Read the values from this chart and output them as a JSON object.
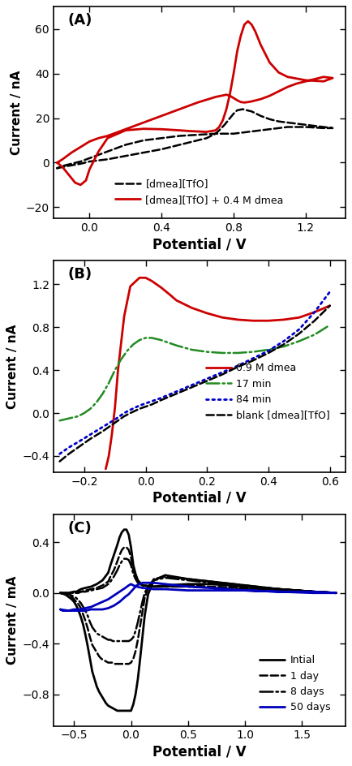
{
  "figsize": [
    4.34,
    9.44
  ],
  "dpi": 100,
  "background_color": "#ffffff",
  "panel_A": {
    "label": "(A)",
    "xlabel": "Potential / V",
    "ylabel": "Current / nA",
    "xlim": [
      -0.2,
      1.42
    ],
    "ylim": [
      -25,
      70
    ],
    "xticks": [
      0.0,
      0.4,
      0.8,
      1.2
    ],
    "yticks": [
      -20,
      0,
      20,
      40,
      60
    ],
    "lines": [
      {
        "label": "[dmea][TfO]",
        "color": "#000000",
        "linestyle": "dashed",
        "linewidth": 1.8,
        "x": [
          -0.18,
          -0.12,
          -0.05,
          0.0,
          0.1,
          0.2,
          0.3,
          0.4,
          0.5,
          0.6,
          0.65,
          0.7,
          0.72,
          0.75,
          0.78,
          0.8,
          0.82,
          0.85,
          0.9,
          0.95,
          1.0,
          1.05,
          1.1,
          1.2,
          1.3,
          1.35,
          1.3,
          1.2,
          1.1,
          1.0,
          0.9,
          0.8,
          0.7,
          0.6,
          0.5,
          0.4,
          0.3,
          0.2,
          0.1,
          0.0,
          -0.05,
          -0.1,
          -0.15,
          -0.18
        ],
        "y": [
          -2.5,
          -1.5,
          -0.5,
          0.5,
          1.5,
          3.0,
          4.5,
          6.0,
          8.0,
          10.0,
          11.0,
          13.0,
          14.5,
          17.0,
          20.0,
          22.0,
          23.5,
          24.0,
          23.0,
          21.0,
          19.5,
          18.5,
          18.0,
          17.0,
          16.0,
          15.5,
          15.5,
          16.0,
          16.0,
          15.0,
          14.0,
          13.0,
          13.0,
          12.5,
          12.0,
          11.0,
          10.0,
          8.0,
          5.0,
          2.0,
          0.5,
          -0.5,
          -1.5,
          -2.5
        ]
      },
      {
        "label": "[dmea][TfO] + 0.4 M dmea",
        "color": "#cc0000",
        "linestyle": "solid",
        "linewidth": 2.0,
        "x": [
          -0.18,
          -0.15,
          -0.12,
          -0.1,
          -0.08,
          -0.05,
          -0.02,
          0.0,
          0.05,
          0.1,
          0.2,
          0.3,
          0.4,
          0.5,
          0.55,
          0.6,
          0.65,
          0.7,
          0.72,
          0.74,
          0.76,
          0.78,
          0.8,
          0.82,
          0.84,
          0.86,
          0.88,
          0.9,
          0.92,
          0.95,
          1.0,
          1.05,
          1.1,
          1.2,
          1.3,
          1.35,
          1.3,
          1.25,
          1.2,
          1.15,
          1.1,
          1.05,
          1.0,
          0.95,
          0.9,
          0.88,
          0.86,
          0.84,
          0.82,
          0.8,
          0.78,
          0.76,
          0.7,
          0.6,
          0.5,
          0.4,
          0.3,
          0.2,
          0.15,
          0.1,
          0.05,
          0.0,
          -0.05,
          -0.1,
          -0.15,
          -0.18
        ],
        "y": [
          0.0,
          -2.0,
          -5.0,
          -7.0,
          -9.0,
          -10.0,
          -8.0,
          -3.0,
          5.0,
          11.0,
          14.5,
          15.2,
          15.0,
          14.5,
          14.2,
          14.0,
          13.8,
          14.5,
          16.0,
          19.0,
          24.0,
          31.0,
          40.0,
          50.0,
          57.0,
          62.0,
          63.5,
          62.0,
          59.0,
          53.0,
          45.0,
          40.5,
          38.5,
          37.0,
          36.5,
          38.0,
          38.5,
          37.5,
          36.5,
          35.5,
          34.0,
          32.0,
          30.0,
          28.5,
          27.5,
          27.2,
          27.0,
          27.2,
          28.0,
          29.0,
          30.0,
          30.5,
          29.5,
          27.0,
          24.0,
          21.0,
          18.0,
          15.0,
          13.5,
          12.0,
          11.0,
          9.5,
          7.0,
          4.5,
          1.5,
          0.0
        ]
      }
    ]
  },
  "panel_B": {
    "label": "(B)",
    "xlabel": "Potential / V",
    "ylabel": "Current / nA",
    "xlim": [
      -0.3,
      0.65
    ],
    "ylim": [
      -0.55,
      1.42
    ],
    "xticks": [
      -0.2,
      0.0,
      0.2,
      0.4,
      0.6
    ],
    "yticks": [
      -0.4,
      0.0,
      0.4,
      0.8,
      1.2
    ],
    "lines": [
      {
        "label": "0.9 M dmea",
        "color": "#cc0000",
        "linestyle": "solid",
        "linewidth": 2.0,
        "x": [
          -0.13,
          -0.12,
          -0.11,
          -0.1,
          -0.09,
          -0.07,
          -0.05,
          -0.02,
          0.0,
          0.02,
          0.05,
          0.08,
          0.1,
          0.15,
          0.2,
          0.25,
          0.3,
          0.35,
          0.4,
          0.45,
          0.5,
          0.55,
          0.6
        ],
        "y": [
          -0.52,
          -0.4,
          -0.2,
          0.05,
          0.4,
          0.9,
          1.18,
          1.26,
          1.26,
          1.23,
          1.17,
          1.1,
          1.05,
          0.98,
          0.93,
          0.89,
          0.87,
          0.86,
          0.86,
          0.87,
          0.89,
          0.94,
          1.0
        ]
      },
      {
        "label": "17 min",
        "color": "#228B22",
        "linestyle": "dashdot",
        "linewidth": 1.8,
        "x": [
          -0.28,
          -0.25,
          -0.22,
          -0.2,
          -0.18,
          -0.16,
          -0.14,
          -0.12,
          -0.1,
          -0.08,
          -0.06,
          -0.04,
          -0.02,
          0.0,
          0.02,
          0.05,
          0.1,
          0.15,
          0.2,
          0.25,
          0.3,
          0.35,
          0.4,
          0.45,
          0.5,
          0.55,
          0.6
        ],
        "y": [
          -0.07,
          -0.05,
          -0.03,
          0.0,
          0.04,
          0.1,
          0.18,
          0.28,
          0.4,
          0.5,
          0.58,
          0.64,
          0.68,
          0.7,
          0.7,
          0.68,
          0.63,
          0.59,
          0.57,
          0.56,
          0.56,
          0.57,
          0.59,
          0.62,
          0.67,
          0.73,
          0.82
        ]
      },
      {
        "label": "84 min",
        "color": "#0000cc",
        "linestyle": "dotted",
        "linewidth": 2.0,
        "x": [
          -0.28,
          -0.25,
          -0.22,
          -0.18,
          -0.14,
          -0.1,
          -0.07,
          -0.05,
          -0.02,
          0.0,
          0.02,
          0.05,
          0.1,
          0.15,
          0.2,
          0.25,
          0.3,
          0.35,
          0.4,
          0.45,
          0.5,
          0.55,
          0.6
        ],
        "y": [
          -0.38,
          -0.32,
          -0.27,
          -0.2,
          -0.13,
          -0.06,
          0.0,
          0.03,
          0.07,
          0.09,
          0.11,
          0.14,
          0.2,
          0.26,
          0.32,
          0.38,
          0.44,
          0.51,
          0.58,
          0.67,
          0.78,
          0.94,
          1.13
        ]
      },
      {
        "label": "blank [dmea][TfO]",
        "color": "#000000",
        "linestyle": "dashed",
        "linewidth": 1.8,
        "x": [
          -0.28,
          -0.25,
          -0.22,
          -0.18,
          -0.14,
          -0.1,
          -0.07,
          -0.05,
          -0.02,
          0.0,
          0.02,
          0.05,
          0.1,
          0.15,
          0.2,
          0.25,
          0.3,
          0.35,
          0.4,
          0.45,
          0.5,
          0.55,
          0.6
        ],
        "y": [
          -0.45,
          -0.38,
          -0.32,
          -0.24,
          -0.17,
          -0.09,
          -0.03,
          0.0,
          0.04,
          0.06,
          0.08,
          0.12,
          0.18,
          0.24,
          0.3,
          0.36,
          0.43,
          0.49,
          0.56,
          0.64,
          0.74,
          0.86,
          1.0
        ]
      }
    ]
  },
  "panel_C": {
    "label": "(C)",
    "xlabel": "Potential / V",
    "ylabel": "Current / mA",
    "xlim": [
      -0.68,
      1.88
    ],
    "ylim": [
      -1.05,
      0.62
    ],
    "xticks": [
      -0.5,
      0.0,
      0.5,
      1.0,
      1.5
    ],
    "yticks": [
      -0.8,
      -0.4,
      0.0,
      0.4
    ],
    "lines": [
      {
        "label": "Intial",
        "color": "#000000",
        "linestyle": "solid",
        "linewidth": 2.0,
        "x": [
          -0.62,
          -0.58,
          -0.55,
          -0.52,
          -0.5,
          -0.48,
          -0.46,
          -0.44,
          -0.42,
          -0.4,
          -0.38,
          -0.36,
          -0.34,
          -0.3,
          -0.28,
          -0.26,
          -0.24,
          -0.22,
          -0.2,
          -0.18,
          -0.16,
          -0.14,
          -0.12,
          -0.1,
          -0.08,
          -0.06,
          -0.04,
          -0.02,
          0.0,
          0.02,
          0.04,
          0.06,
          0.08,
          0.1,
          0.12,
          0.15,
          0.2,
          0.3,
          0.5,
          0.7,
          1.0,
          1.3,
          1.6,
          1.8,
          1.8,
          1.6,
          1.3,
          1.0,
          0.7,
          0.5,
          0.3,
          0.2,
          0.1,
          0.06,
          0.04,
          0.02,
          0.0,
          -0.02,
          -0.04,
          -0.06,
          -0.08,
          -0.1,
          -0.12,
          -0.15,
          -0.18,
          -0.2,
          -0.25,
          -0.3,
          -0.35,
          -0.4,
          -0.44,
          -0.46,
          -0.48,
          -0.5,
          -0.55,
          -0.58,
          -0.62
        ],
        "y": [
          0.0,
          -0.01,
          -0.03,
          -0.05,
          -0.07,
          -0.1,
          -0.14,
          -0.19,
          -0.25,
          -0.33,
          -0.42,
          -0.52,
          -0.62,
          -0.74,
          -0.78,
          -0.81,
          -0.84,
          -0.87,
          -0.89,
          -0.9,
          -0.91,
          -0.92,
          -0.93,
          -0.93,
          -0.93,
          -0.93,
          -0.93,
          -0.93,
          -0.93,
          -0.88,
          -0.8,
          -0.68,
          -0.52,
          -0.35,
          -0.18,
          -0.01,
          0.1,
          0.14,
          0.11,
          0.09,
          0.06,
          0.03,
          0.01,
          0.0,
          0.0,
          0.01,
          0.03,
          0.05,
          0.07,
          0.07,
          0.06,
          0.05,
          0.06,
          0.1,
          0.15,
          0.22,
          0.36,
          0.46,
          0.5,
          0.5,
          0.48,
          0.44,
          0.38,
          0.3,
          0.22,
          0.16,
          0.1,
          0.07,
          0.05,
          0.04,
          0.03,
          0.02,
          0.01,
          0.01,
          0.0,
          0.0,
          0.0
        ]
      },
      {
        "label": "1 day",
        "color": "#000000",
        "linestyle": "dashed",
        "linewidth": 1.8,
        "x": [
          -0.62,
          -0.58,
          -0.55,
          -0.52,
          -0.5,
          -0.48,
          -0.46,
          -0.44,
          -0.42,
          -0.4,
          -0.38,
          -0.36,
          -0.34,
          -0.3,
          -0.28,
          -0.26,
          -0.24,
          -0.22,
          -0.2,
          -0.18,
          -0.16,
          -0.14,
          -0.12,
          -0.1,
          -0.08,
          -0.06,
          -0.04,
          -0.02,
          0.0,
          0.02,
          0.04,
          0.06,
          0.08,
          0.1,
          0.12,
          0.15,
          0.2,
          0.3,
          0.5,
          0.7,
          1.0,
          1.3,
          1.6,
          1.8,
          1.8,
          1.6,
          1.3,
          1.0,
          0.7,
          0.5,
          0.3,
          0.2,
          0.1,
          0.06,
          0.04,
          0.02,
          0.0,
          -0.02,
          -0.04,
          -0.06,
          -0.08,
          -0.1,
          -0.12,
          -0.15,
          -0.18,
          -0.2,
          -0.25,
          -0.3,
          -0.35,
          -0.4,
          -0.44,
          -0.46,
          -0.48,
          -0.5,
          -0.55,
          -0.58,
          -0.62
        ],
        "y": [
          0.0,
          -0.01,
          -0.02,
          -0.03,
          -0.05,
          -0.07,
          -0.09,
          -0.12,
          -0.17,
          -0.22,
          -0.28,
          -0.35,
          -0.41,
          -0.47,
          -0.5,
          -0.52,
          -0.53,
          -0.54,
          -0.55,
          -0.55,
          -0.55,
          -0.56,
          -0.56,
          -0.56,
          -0.56,
          -0.56,
          -0.56,
          -0.56,
          -0.55,
          -0.52,
          -0.46,
          -0.37,
          -0.26,
          -0.15,
          -0.04,
          0.04,
          0.11,
          0.13,
          0.11,
          0.09,
          0.06,
          0.03,
          0.01,
          0.0,
          0.0,
          0.01,
          0.02,
          0.04,
          0.05,
          0.06,
          0.05,
          0.05,
          0.06,
          0.09,
          0.13,
          0.18,
          0.28,
          0.34,
          0.36,
          0.36,
          0.34,
          0.3,
          0.25,
          0.18,
          0.13,
          0.09,
          0.06,
          0.04,
          0.03,
          0.02,
          0.01,
          0.01,
          0.0,
          0.0,
          0.0,
          0.0,
          0.0
        ]
      },
      {
        "label": "8 days",
        "color": "#000000",
        "linestyle": "dashdot",
        "linewidth": 1.8,
        "x": [
          -0.62,
          -0.58,
          -0.55,
          -0.52,
          -0.5,
          -0.48,
          -0.46,
          -0.44,
          -0.42,
          -0.4,
          -0.38,
          -0.36,
          -0.34,
          -0.3,
          -0.28,
          -0.26,
          -0.24,
          -0.22,
          -0.2,
          -0.18,
          -0.16,
          -0.14,
          -0.12,
          -0.1,
          -0.08,
          -0.06,
          -0.04,
          -0.02,
          0.0,
          0.02,
          0.04,
          0.06,
          0.08,
          0.1,
          0.12,
          0.15,
          0.2,
          0.3,
          0.5,
          0.7,
          1.0,
          1.3,
          1.6,
          1.8,
          1.8,
          1.6,
          1.3,
          1.0,
          0.7,
          0.5,
          0.3,
          0.2,
          0.1,
          0.06,
          0.04,
          0.02,
          0.0,
          -0.02,
          -0.04,
          -0.06,
          -0.08,
          -0.1,
          -0.12,
          -0.15,
          -0.18,
          -0.2,
          -0.25,
          -0.3,
          -0.35,
          -0.4,
          -0.44,
          -0.46,
          -0.48,
          -0.5,
          -0.55,
          -0.58,
          -0.62
        ],
        "y": [
          0.0,
          -0.01,
          -0.01,
          -0.02,
          -0.03,
          -0.04,
          -0.06,
          -0.08,
          -0.11,
          -0.14,
          -0.18,
          -0.23,
          -0.27,
          -0.32,
          -0.33,
          -0.34,
          -0.35,
          -0.36,
          -0.37,
          -0.37,
          -0.38,
          -0.38,
          -0.38,
          -0.38,
          -0.38,
          -0.38,
          -0.38,
          -0.38,
          -0.37,
          -0.35,
          -0.3,
          -0.23,
          -0.15,
          -0.07,
          0.0,
          0.05,
          0.1,
          0.12,
          0.1,
          0.08,
          0.05,
          0.03,
          0.01,
          0.0,
          0.0,
          0.01,
          0.02,
          0.03,
          0.04,
          0.05,
          0.05,
          0.05,
          0.06,
          0.08,
          0.11,
          0.15,
          0.22,
          0.26,
          0.27,
          0.27,
          0.25,
          0.22,
          0.18,
          0.13,
          0.09,
          0.07,
          0.04,
          0.03,
          0.02,
          0.01,
          0.01,
          0.0,
          0.0,
          0.0,
          0.0,
          0.0,
          0.0
        ]
      },
      {
        "label": "50 days",
        "color": "#0000bb",
        "linestyle": "solid",
        "linewidth": 2.0,
        "x": [
          -0.62,
          -0.55,
          -0.5,
          -0.45,
          -0.4,
          -0.35,
          -0.3,
          -0.25,
          -0.2,
          -0.15,
          -0.1,
          -0.05,
          -0.02,
          0.0,
          0.02,
          0.05,
          0.1,
          0.2,
          0.3,
          0.5,
          0.7,
          1.0,
          1.3,
          1.6,
          1.8,
          1.8,
          1.6,
          1.3,
          1.0,
          0.7,
          0.5,
          0.3,
          0.2,
          0.1,
          0.05,
          0.02,
          0.0,
          -0.02,
          -0.05,
          -0.1,
          -0.15,
          -0.2,
          -0.25,
          -0.3,
          -0.35,
          -0.4,
          -0.45,
          -0.5,
          -0.55,
          -0.6,
          -0.62
        ],
        "y": [
          -0.13,
          -0.14,
          -0.14,
          -0.14,
          -0.14,
          -0.13,
          -0.13,
          -0.13,
          -0.12,
          -0.1,
          -0.07,
          -0.03,
          -0.01,
          0.01,
          0.03,
          0.06,
          0.08,
          0.08,
          0.07,
          0.05,
          0.04,
          0.02,
          0.01,
          0.0,
          0.0,
          0.0,
          0.01,
          0.01,
          0.02,
          0.02,
          0.02,
          0.03,
          0.03,
          0.04,
          0.05,
          0.06,
          0.07,
          0.06,
          0.04,
          0.01,
          -0.02,
          -0.05,
          -0.07,
          -0.09,
          -0.11,
          -0.12,
          -0.13,
          -0.13,
          -0.14,
          -0.14,
          -0.13
        ]
      }
    ]
  }
}
